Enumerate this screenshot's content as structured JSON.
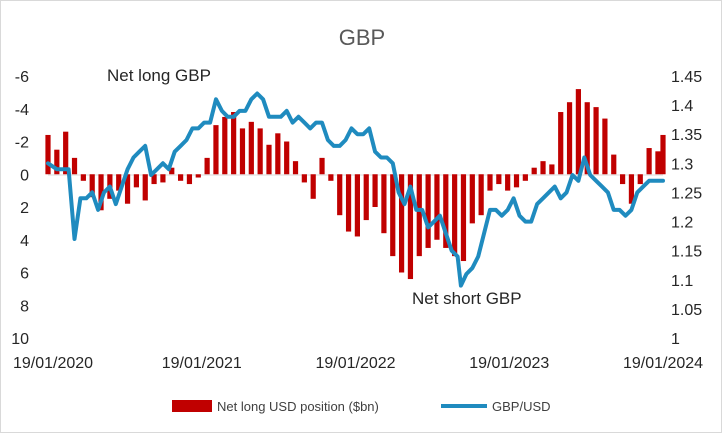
{
  "chart_data": {
    "type": "bar+line",
    "title": "GBP",
    "left_axis": {
      "reversed": true,
      "range": [
        -6,
        10
      ],
      "ticks": [
        "-6",
        "-4",
        "-2",
        "0",
        "2",
        "4",
        "6",
        "8",
        "10"
      ]
    },
    "right_axis": {
      "range": [
        1.0,
        1.45
      ],
      "ticks": [
        "1.45",
        "1.4",
        "1.35",
        "1.3",
        "1.25",
        "1.2",
        "1.15",
        "1.1",
        "1.05",
        "1"
      ]
    },
    "x_axis": {
      "range": [
        "2020-01-19",
        "2024-01-19"
      ],
      "tick_labels": [
        "19/01/2020",
        "19/01/2021",
        "19/01/2022",
        "19/01/2023",
        "19/01/2024"
      ]
    },
    "annotations": {
      "net_long": "Net long GBP",
      "net_short": "Net short GBP"
    },
    "legend": {
      "placement": "bottom",
      "bar_label": "Net long USD position ($bn)",
      "line_label": "GBP/USD"
    },
    "colors": {
      "bars": "#c00000",
      "line": "#1f8bbf",
      "text": "#404040"
    },
    "series": [
      {
        "name": "Net long USD position ($bn)",
        "kind": "bar",
        "axis": "left",
        "points": [
          [
            "2020-01-19",
            -2.4
          ],
          [
            "2020-02-09",
            -1.5
          ],
          [
            "2020-03-01",
            -2.6
          ],
          [
            "2020-03-22",
            -1.0
          ],
          [
            "2020-04-12",
            0.4
          ],
          [
            "2020-05-03",
            1.4
          ],
          [
            "2020-05-24",
            2.2
          ],
          [
            "2020-06-14",
            1.5
          ],
          [
            "2020-07-05",
            1.0
          ],
          [
            "2020-07-26",
            1.8
          ],
          [
            "2020-08-16",
            0.8
          ],
          [
            "2020-09-06",
            1.6
          ],
          [
            "2020-09-27",
            0.6
          ],
          [
            "2020-10-18",
            0.5
          ],
          [
            "2020-11-08",
            -0.4
          ],
          [
            "2020-11-29",
            0.4
          ],
          [
            "2020-12-20",
            0.6
          ],
          [
            "2021-01-10",
            0.2
          ],
          [
            "2021-01-31",
            -1.0
          ],
          [
            "2021-02-21",
            -3.0
          ],
          [
            "2021-03-14",
            -3.5
          ],
          [
            "2021-04-04",
            -3.8
          ],
          [
            "2021-04-25",
            -2.8
          ],
          [
            "2021-05-16",
            -3.2
          ],
          [
            "2021-06-06",
            -2.8
          ],
          [
            "2021-06-27",
            -1.8
          ],
          [
            "2021-07-18",
            -2.5
          ],
          [
            "2021-08-08",
            -2.0
          ],
          [
            "2021-08-29",
            -0.8
          ],
          [
            "2021-09-19",
            0.5
          ],
          [
            "2021-10-10",
            1.5
          ],
          [
            "2021-10-31",
            -1.0
          ],
          [
            "2021-11-21",
            0.4
          ],
          [
            "2021-12-12",
            2.5
          ],
          [
            "2022-01-02",
            3.5
          ],
          [
            "2022-01-23",
            3.8
          ],
          [
            "2022-02-13",
            2.8
          ],
          [
            "2022-03-06",
            2.0
          ],
          [
            "2022-03-27",
            3.6
          ],
          [
            "2022-04-17",
            5.0
          ],
          [
            "2022-05-08",
            6.0
          ],
          [
            "2022-05-29",
            6.4
          ],
          [
            "2022-06-19",
            5.0
          ],
          [
            "2022-07-10",
            4.5
          ],
          [
            "2022-07-31",
            4.0
          ],
          [
            "2022-08-21",
            4.5
          ],
          [
            "2022-09-11",
            5.0
          ],
          [
            "2022-10-02",
            5.3
          ],
          [
            "2022-10-23",
            3.0
          ],
          [
            "2022-11-13",
            2.5
          ],
          [
            "2022-12-04",
            1.0
          ],
          [
            "2022-12-25",
            0.6
          ],
          [
            "2023-01-15",
            1.0
          ],
          [
            "2023-02-05",
            0.8
          ],
          [
            "2023-02-26",
            0.4
          ],
          [
            "2023-03-19",
            -0.4
          ],
          [
            "2023-04-09",
            -0.8
          ],
          [
            "2023-04-30",
            -0.6
          ],
          [
            "2023-05-21",
            -3.8
          ],
          [
            "2023-06-11",
            -4.4
          ],
          [
            "2023-07-02",
            -5.2
          ],
          [
            "2023-07-23",
            -4.4
          ],
          [
            "2023-08-13",
            -4.1
          ],
          [
            "2023-09-03",
            -3.4
          ],
          [
            "2023-09-24",
            -1.2
          ],
          [
            "2023-10-15",
            0.6
          ],
          [
            "2023-11-05",
            1.8
          ],
          [
            "2023-11-26",
            0.6
          ],
          [
            "2023-12-17",
            -1.6
          ],
          [
            "2024-01-07",
            -1.4
          ],
          [
            "2024-01-19",
            -2.4
          ]
        ]
      },
      {
        "name": "GBP/USD",
        "kind": "line",
        "axis": "right",
        "points": [
          [
            "2020-01-19",
            1.3
          ],
          [
            "2020-02-09",
            1.29
          ],
          [
            "2020-02-23",
            1.29
          ],
          [
            "2020-03-08",
            1.29
          ],
          [
            "2020-03-22",
            1.17
          ],
          [
            "2020-04-05",
            1.24
          ],
          [
            "2020-04-19",
            1.24
          ],
          [
            "2020-05-03",
            1.25
          ],
          [
            "2020-05-17",
            1.22
          ],
          [
            "2020-05-31",
            1.25
          ],
          [
            "2020-06-14",
            1.26
          ],
          [
            "2020-06-28",
            1.23
          ],
          [
            "2020-07-12",
            1.26
          ],
          [
            "2020-07-26",
            1.29
          ],
          [
            "2020-08-09",
            1.31
          ],
          [
            "2020-08-23",
            1.32
          ],
          [
            "2020-09-06",
            1.33
          ],
          [
            "2020-09-20",
            1.28
          ],
          [
            "2020-10-04",
            1.29
          ],
          [
            "2020-10-18",
            1.3
          ],
          [
            "2020-11-01",
            1.29
          ],
          [
            "2020-11-15",
            1.32
          ],
          [
            "2020-11-29",
            1.33
          ],
          [
            "2020-12-13",
            1.34
          ],
          [
            "2020-12-27",
            1.36
          ],
          [
            "2021-01-10",
            1.36
          ],
          [
            "2021-01-24",
            1.37
          ],
          [
            "2021-02-07",
            1.37
          ],
          [
            "2021-02-21",
            1.41
          ],
          [
            "2021-03-07",
            1.39
          ],
          [
            "2021-03-21",
            1.38
          ],
          [
            "2021-04-04",
            1.38
          ],
          [
            "2021-04-18",
            1.39
          ],
          [
            "2021-05-02",
            1.39
          ],
          [
            "2021-05-16",
            1.41
          ],
          [
            "2021-05-30",
            1.42
          ],
          [
            "2021-06-13",
            1.41
          ],
          [
            "2021-06-27",
            1.38
          ],
          [
            "2021-07-11",
            1.38
          ],
          [
            "2021-07-25",
            1.38
          ],
          [
            "2021-08-08",
            1.39
          ],
          [
            "2021-08-22",
            1.37
          ],
          [
            "2021-09-05",
            1.38
          ],
          [
            "2021-09-19",
            1.37
          ],
          [
            "2021-10-03",
            1.36
          ],
          [
            "2021-10-17",
            1.37
          ],
          [
            "2021-10-31",
            1.37
          ],
          [
            "2021-11-14",
            1.34
          ],
          [
            "2021-11-28",
            1.33
          ],
          [
            "2021-12-12",
            1.33
          ],
          [
            "2021-12-26",
            1.34
          ],
          [
            "2022-01-09",
            1.36
          ],
          [
            "2022-01-23",
            1.35
          ],
          [
            "2022-02-06",
            1.35
          ],
          [
            "2022-02-20",
            1.36
          ],
          [
            "2022-03-06",
            1.32
          ],
          [
            "2022-03-20",
            1.31
          ],
          [
            "2022-04-03",
            1.31
          ],
          [
            "2022-04-17",
            1.3
          ],
          [
            "2022-05-01",
            1.25
          ],
          [
            "2022-05-15",
            1.23
          ],
          [
            "2022-05-29",
            1.26
          ],
          [
            "2022-06-12",
            1.22
          ],
          [
            "2022-06-26",
            1.22
          ],
          [
            "2022-07-10",
            1.19
          ],
          [
            "2022-07-24",
            1.2
          ],
          [
            "2022-08-07",
            1.21
          ],
          [
            "2022-08-21",
            1.18
          ],
          [
            "2022-09-04",
            1.15
          ],
          [
            "2022-09-18",
            1.14
          ],
          [
            "2022-09-26",
            1.09
          ],
          [
            "2022-10-09",
            1.11
          ],
          [
            "2022-10-23",
            1.12
          ],
          [
            "2022-11-06",
            1.14
          ],
          [
            "2022-11-20",
            1.18
          ],
          [
            "2022-12-04",
            1.22
          ],
          [
            "2022-12-18",
            1.22
          ],
          [
            "2023-01-01",
            1.21
          ],
          [
            "2023-01-15",
            1.22
          ],
          [
            "2023-01-29",
            1.24
          ],
          [
            "2023-02-12",
            1.21
          ],
          [
            "2023-02-26",
            1.2
          ],
          [
            "2023-03-12",
            1.2
          ],
          [
            "2023-03-26",
            1.23
          ],
          [
            "2023-04-09",
            1.24
          ],
          [
            "2023-04-23",
            1.25
          ],
          [
            "2023-05-07",
            1.26
          ],
          [
            "2023-05-21",
            1.24
          ],
          [
            "2023-06-04",
            1.25
          ],
          [
            "2023-06-18",
            1.28
          ],
          [
            "2023-07-02",
            1.27
          ],
          [
            "2023-07-16",
            1.31
          ],
          [
            "2023-07-30",
            1.28
          ],
          [
            "2023-08-13",
            1.27
          ],
          [
            "2023-08-27",
            1.26
          ],
          [
            "2023-09-10",
            1.25
          ],
          [
            "2023-09-24",
            1.22
          ],
          [
            "2023-10-08",
            1.22
          ],
          [
            "2023-10-22",
            1.21
          ],
          [
            "2023-11-05",
            1.22
          ],
          [
            "2023-11-19",
            1.25
          ],
          [
            "2023-12-03",
            1.26
          ],
          [
            "2023-12-17",
            1.27
          ],
          [
            "2024-01-07",
            1.27
          ],
          [
            "2024-01-19",
            1.27
          ]
        ]
      }
    ]
  }
}
